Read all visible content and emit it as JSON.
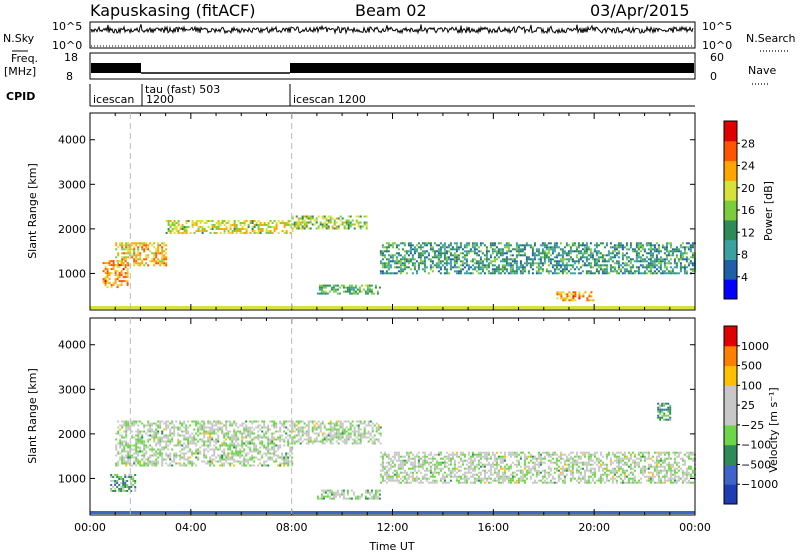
{
  "header": {
    "station": "Kapuskasing (fitACF)",
    "beam": "Beam 02",
    "date": "03/Apr/2015"
  },
  "top_panel": {
    "nsky_label": "N.Sky",
    "nsearch_label": "N.Search",
    "nsky_ticks": [
      "10^5",
      "10^0"
    ],
    "nsearch_ticks": [
      "10^5",
      "10^0"
    ],
    "freq_label": "Freq.",
    "freq_unit": "[MHz]",
    "freq_ticks": [
      "18",
      "8"
    ],
    "nave_label": "Nave",
    "nave_ticks": [
      "60",
      "0"
    ],
    "cpid_label": "CPID",
    "modes": [
      {
        "name": "icescan",
        "start": 0
      },
      {
        "name": "1200",
        "start": 1.6
      },
      {
        "name": "tau (fast) 503",
        "start": 1.9
      },
      {
        "name": "icescan 1200",
        "start": 8.0
      }
    ]
  },
  "colors": {
    "power_scale": [
      "#0000ff",
      "#1f5fa8",
      "#3aa0a0",
      "#2e8b57",
      "#7ccd3c",
      "#d8e03a",
      "#ffa500",
      "#ff5500",
      "#e00000"
    ],
    "velocity_scale": [
      "#1e3cb4",
      "#3f64c8",
      "#2e8b57",
      "#6ed44a",
      "#c8c8c8",
      "#c8c8c8",
      "#ffc000",
      "#ff8000",
      "#e00000"
    ]
  },
  "chart_data": [
    {
      "type": "heatmap",
      "name": "power",
      "ylabel": "Slant Range [km]",
      "xlim": [
        0,
        24
      ],
      "ylim": [
        180,
        4600
      ],
      "yticks": [
        1000,
        2000,
        3000,
        4000
      ],
      "colorbar": {
        "label": "Power [dB]",
        "ticks": [
          "28",
          "24",
          "20",
          "16",
          "12",
          "8",
          "4"
        ],
        "range": [
          0,
          30
        ]
      },
      "echo_bands": [
        {
          "x": [
            0.5,
            1.5
          ],
          "y": [
            700,
            1300
          ],
          "value": 22
        },
        {
          "x": [
            1.0,
            3.0
          ],
          "y": [
            1200,
            1700
          ],
          "value": 20
        },
        {
          "x": [
            3.0,
            8.0
          ],
          "y": [
            1900,
            2200
          ],
          "value": 18
        },
        {
          "x": [
            8.0,
            11.0
          ],
          "y": [
            2000,
            2300
          ],
          "value": 16
        },
        {
          "x": [
            9.0,
            11.5
          ],
          "y": [
            550,
            750
          ],
          "value": 12
        },
        {
          "x": [
            11.5,
            24.0
          ],
          "y": [
            1000,
            1700
          ],
          "value": 10
        },
        {
          "x": [
            18.5,
            20.0
          ],
          "y": [
            400,
            600
          ],
          "value": 22
        }
      ]
    },
    {
      "type": "heatmap",
      "name": "velocity",
      "ylabel": "Slant Range [km]",
      "xlabel": "Time UT",
      "xlim": [
        0,
        24
      ],
      "ylim": [
        180,
        4600
      ],
      "yticks": [
        1000,
        2000,
        3000,
        4000
      ],
      "xticks": [
        "00:00",
        "04:00",
        "08:00",
        "12:00",
        "16:00",
        "20:00",
        "00:00"
      ],
      "colorbar": {
        "label": "Velocity [m s⁻¹]",
        "ticks": [
          "1000",
          "500",
          "100",
          "25",
          "−25",
          "−100",
          "−500",
          "−1000"
        ],
        "range": [
          -1000,
          1000
        ]
      },
      "echo_bands": [
        {
          "x": [
            0.8,
            1.8
          ],
          "y": [
            700,
            1100
          ],
          "value": -300
        },
        {
          "x": [
            1.0,
            8.0
          ],
          "y": [
            1300,
            2300
          ],
          "value": 0
        },
        {
          "x": [
            8.0,
            11.5
          ],
          "y": [
            1800,
            2300
          ],
          "value": 0
        },
        {
          "x": [
            9.0,
            11.5
          ],
          "y": [
            550,
            750
          ],
          "value": -80
        },
        {
          "x": [
            11.5,
            24.0
          ],
          "y": [
            900,
            1600
          ],
          "value": 0
        },
        {
          "x": [
            22.5,
            23.0
          ],
          "y": [
            2300,
            2700
          ],
          "value": -400
        }
      ]
    }
  ]
}
